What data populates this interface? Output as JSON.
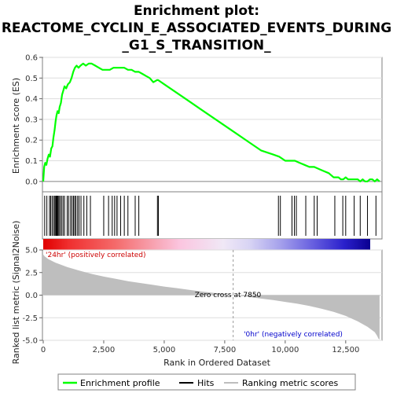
{
  "title_lines": [
    "Enrichment plot:",
    "REACTOME_CYCLIN_E_ASSOCIATED_EVENTS_DURING",
    "_G1_S_TRANSITION_"
  ],
  "colors": {
    "es_line": "#00ff00",
    "hits": "#000000",
    "metric_fill": "#bebebe",
    "pos_label": "#cc0000",
    "neg_label": "#0000cc",
    "zero_line": "#888888",
    "grid": "#dddddd"
  },
  "legend": {
    "enrichment_profile": "Enrichment profile",
    "hits": "Hits",
    "ranking_metric": "Ranking metric scores"
  },
  "labels": {
    "pos": "'24hr' (positively correlated)",
    "neg": "'0hr' (negatively correlated)",
    "zero_cross": "Zero cross at 7850"
  },
  "chart_data": [
    {
      "type": "line",
      "name": "enrichment-profile",
      "ylabel": "Enrichment score (ES)",
      "xlim": [
        0,
        14000
      ],
      "ylim": [
        -0.05,
        0.6
      ],
      "yticks": [
        0.0,
        0.1,
        0.2,
        0.3,
        0.4,
        0.5,
        0.6
      ],
      "ytick_labels": [
        "0.0",
        "0.1",
        "0.2",
        "0.3",
        "0.4",
        "0.5",
        "0.6"
      ],
      "grid": true,
      "x": [
        0,
        40,
        80,
        130,
        180,
        230,
        280,
        330,
        380,
        420,
        470,
        510,
        550,
        590,
        640,
        680,
        730,
        780,
        830,
        880,
        950,
        1020,
        1100,
        1170,
        1240,
        1310,
        1380,
        1460,
        1540,
        1650,
        1760,
        1880,
        2000,
        2150,
        2300,
        2450,
        2600,
        2750,
        2900,
        3050,
        3200,
        3350,
        3500,
        3650,
        3800,
        3950,
        4100,
        4250,
        4400,
        4550,
        4700,
        4750,
        5000,
        5500,
        6000,
        6500,
        7000,
        7500,
        8000,
        8500,
        9000,
        9500,
        9750,
        10000,
        10200,
        10400,
        10600,
        10800,
        11000,
        11200,
        11400,
        11600,
        11800,
        12000,
        12200,
        12300,
        12400,
        12500,
        12600,
        12700,
        12800,
        12900,
        13000,
        13100,
        13200,
        13300,
        13400,
        13500,
        13600,
        13700,
        13800,
        13900
      ],
      "y": [
        0.0,
        0.07,
        0.09,
        0.08,
        0.11,
        0.13,
        0.12,
        0.16,
        0.17,
        0.21,
        0.25,
        0.29,
        0.32,
        0.34,
        0.33,
        0.36,
        0.38,
        0.42,
        0.44,
        0.46,
        0.45,
        0.47,
        0.48,
        0.5,
        0.53,
        0.55,
        0.56,
        0.55,
        0.56,
        0.57,
        0.56,
        0.57,
        0.57,
        0.56,
        0.55,
        0.54,
        0.54,
        0.54,
        0.55,
        0.55,
        0.55,
        0.55,
        0.54,
        0.54,
        0.53,
        0.53,
        0.52,
        0.51,
        0.5,
        0.48,
        0.49,
        0.49,
        0.47,
        0.43,
        0.39,
        0.35,
        0.31,
        0.27,
        0.23,
        0.19,
        0.15,
        0.13,
        0.12,
        0.1,
        0.1,
        0.1,
        0.09,
        0.08,
        0.07,
        0.07,
        0.06,
        0.05,
        0.04,
        0.02,
        0.02,
        0.01,
        0.01,
        0.02,
        0.01,
        0.01,
        0.01,
        0.01,
        0.01,
        0.0,
        0.01,
        0.0,
        0.0,
        0.01,
        0.01,
        0.0,
        0.01,
        0.0
      ]
    },
    {
      "type": "scatter",
      "name": "hits",
      "xlim": [
        0,
        14000
      ],
      "x": [
        60,
        150,
        260,
        310,
        370,
        430,
        480,
        520,
        550,
        580,
        610,
        650,
        700,
        760,
        820,
        880,
        990,
        1050,
        1130,
        1190,
        1250,
        1300,
        1350,
        1420,
        1480,
        1560,
        1680,
        1800,
        1950,
        2500,
        2700,
        2850,
        2950,
        3050,
        3200,
        3350,
        3500,
        3800,
        3950,
        4720,
        4760,
        9720,
        9800,
        10280,
        10380,
        10460,
        10850,
        11200,
        11320,
        12050,
        12380,
        12500,
        12850,
        13100,
        13400,
        13750
      ]
    },
    {
      "type": "area",
      "name": "ranking-metric",
      "ylabel": "Ranked list metric (Signal2Noise)",
      "xlabel": "Rank in Ordered Dataset",
      "xlim": [
        0,
        14000
      ],
      "ylim": [
        -5.0,
        5.0
      ],
      "xticks": [
        0,
        2500,
        5000,
        7500,
        10000,
        12500
      ],
      "xtick_labels": [
        "0",
        "2,500",
        "5,000",
        "7,500",
        "10,000",
        "12,500"
      ],
      "yticks": [
        -5.0,
        -2.5,
        0.0,
        2.5,
        5.0
      ],
      "ytick_labels": [
        "-5.0",
        "-2.5",
        "0.0",
        "2.5",
        "5.0"
      ],
      "x": [
        0,
        60,
        200,
        500,
        1000,
        1500,
        2000,
        2500,
        3000,
        3500,
        4000,
        4500,
        5000,
        5500,
        6000,
        6500,
        7000,
        7500,
        7850,
        8500,
        9000,
        9500,
        10000,
        10500,
        11000,
        11500,
        12000,
        12500,
        13000,
        13400,
        13700,
        13800,
        13850,
        13900
      ],
      "y": [
        4.5,
        4.3,
        4.0,
        3.6,
        3.1,
        2.7,
        2.35,
        2.05,
        1.8,
        1.55,
        1.35,
        1.15,
        0.95,
        0.78,
        0.6,
        0.42,
        0.26,
        0.1,
        0.0,
        -0.2,
        -0.38,
        -0.55,
        -0.75,
        -0.95,
        -1.2,
        -1.5,
        -1.85,
        -2.3,
        -2.9,
        -3.5,
        -4.1,
        -4.5,
        -4.8,
        -4.9
      ]
    }
  ]
}
